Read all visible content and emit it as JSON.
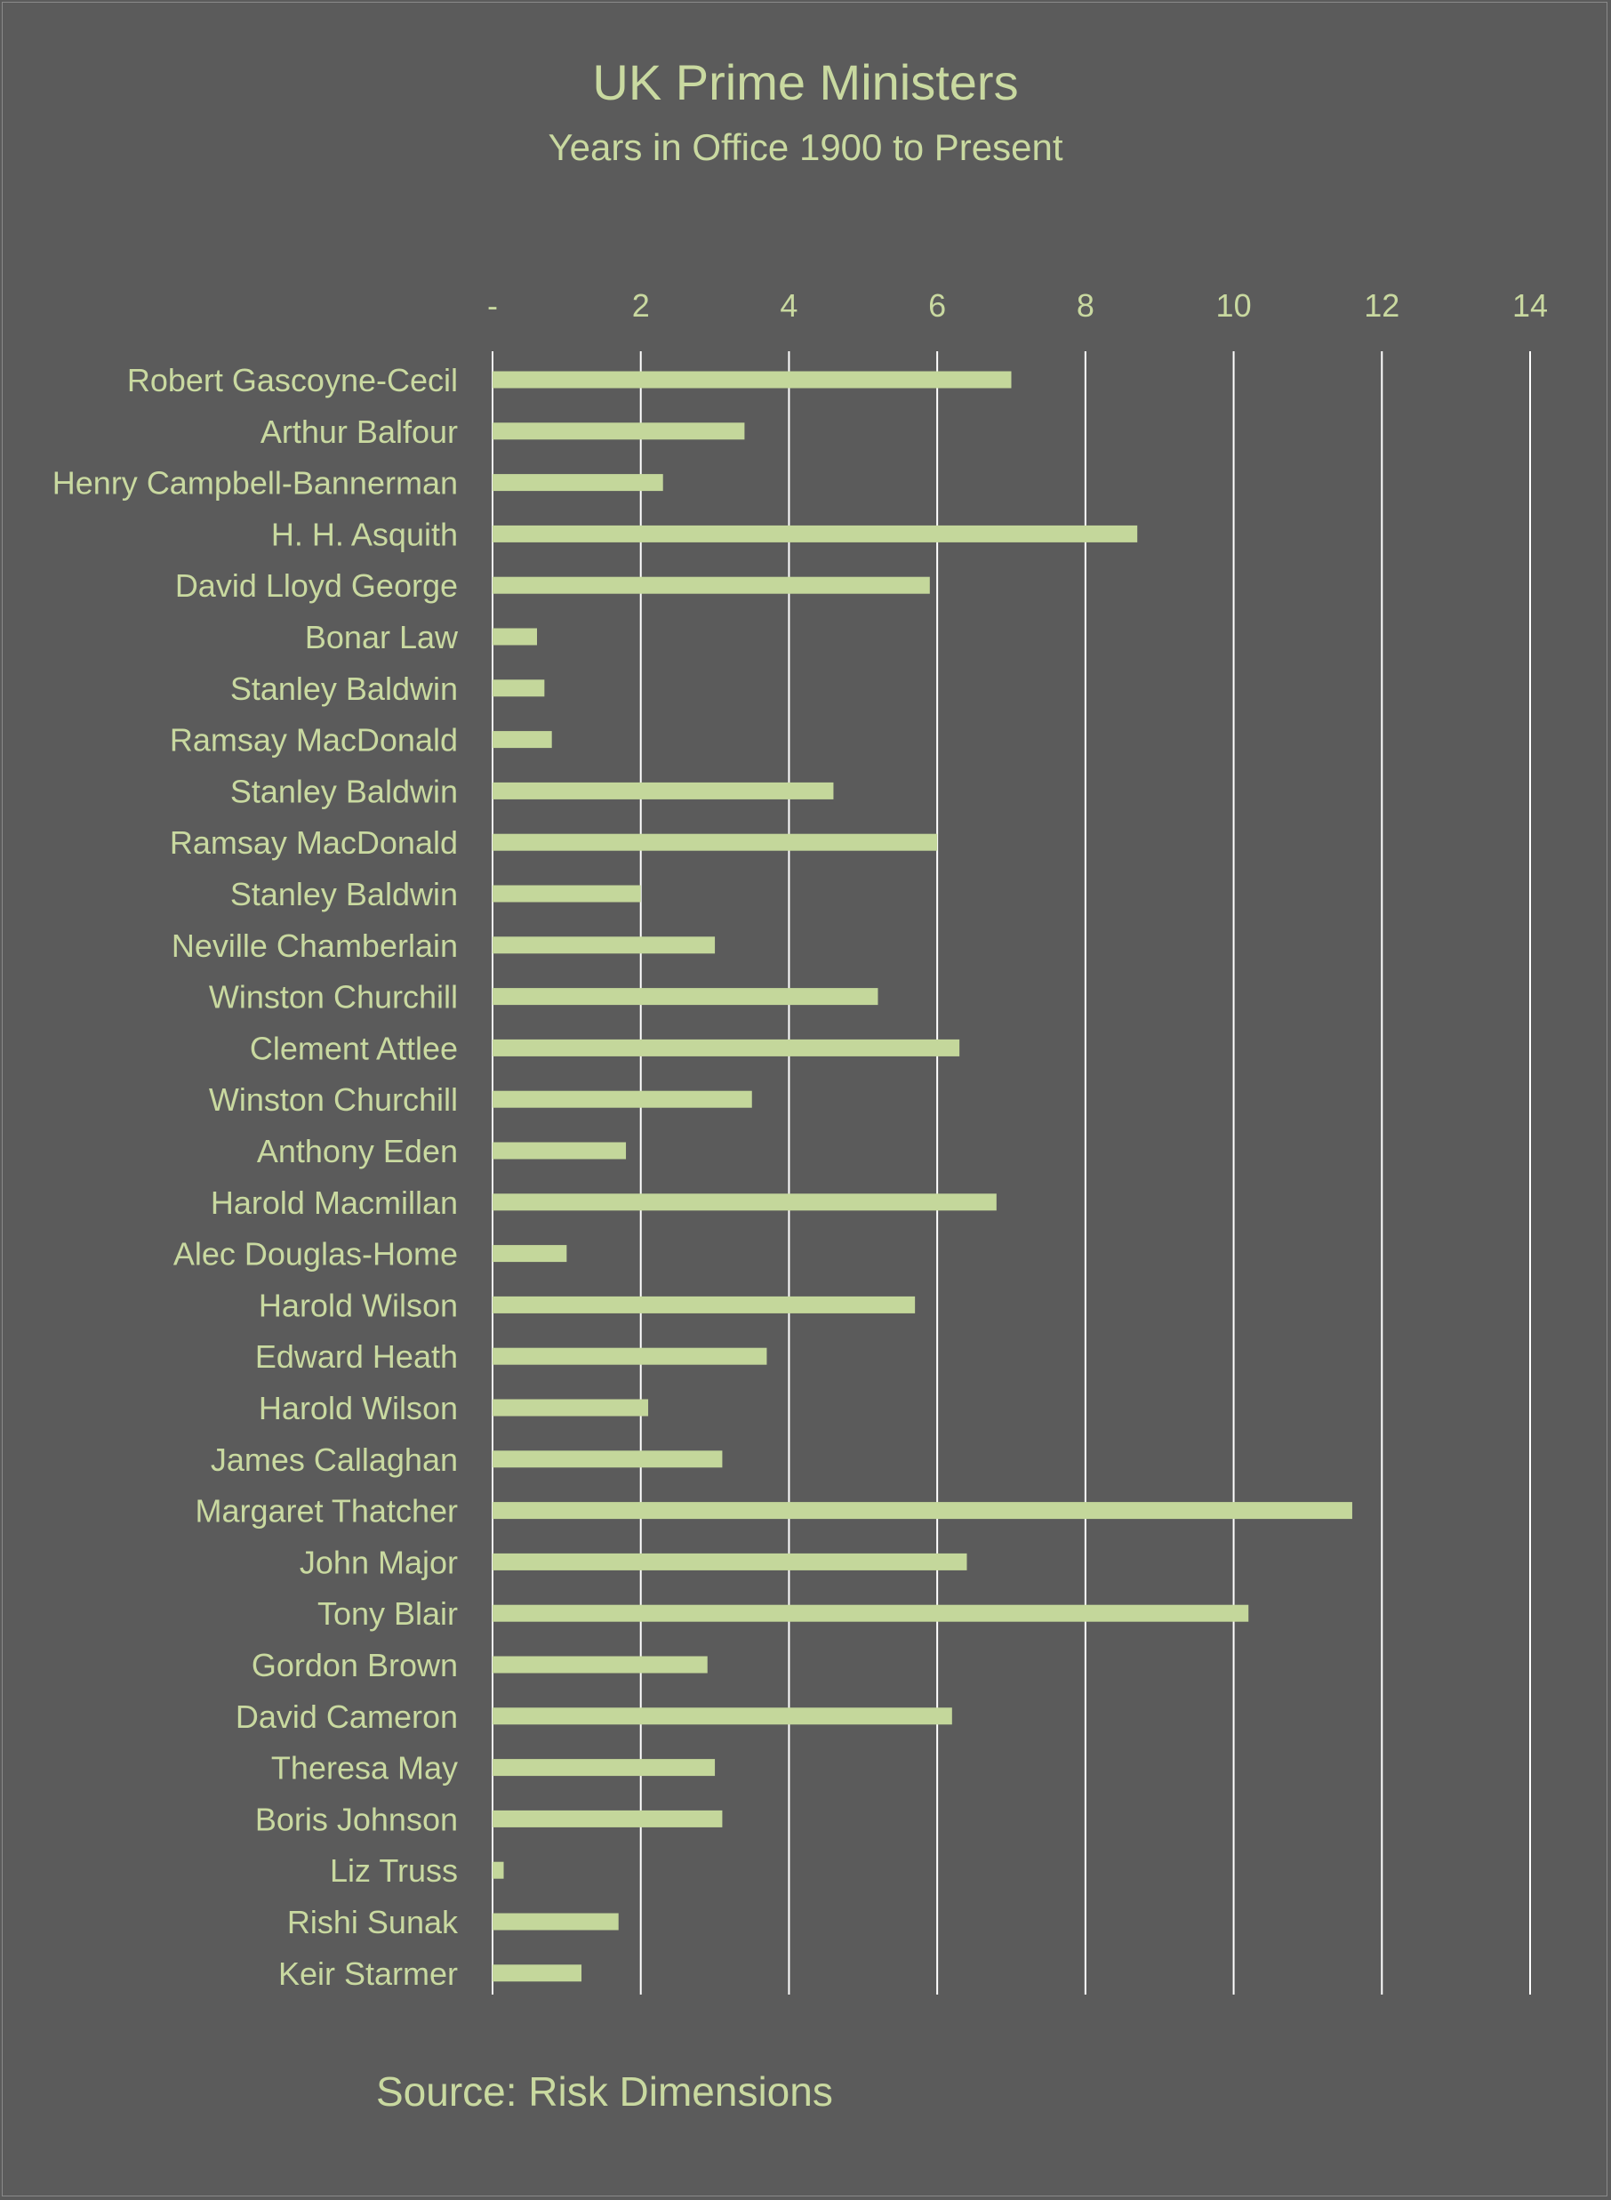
{
  "chart_data": {
    "type": "bar",
    "orientation": "horizontal",
    "title": "UK Prime Ministers",
    "subtitle": "Years in Office 1900 to Present",
    "source": "Source: Risk Dimensions",
    "xlim": [
      0,
      14
    ],
    "x_ticks": [
      0,
      2,
      4,
      6,
      8,
      10,
      12,
      14
    ],
    "x_tick_labels": [
      "-",
      "2",
      "4",
      "6",
      "8",
      "10",
      "12",
      "14"
    ],
    "grid": true,
    "legend": "none",
    "categories": [
      "Robert Gascoyne-Cecil",
      "Arthur Balfour",
      "Henry Campbell-Bannerman",
      "H. H. Asquith",
      "David Lloyd George",
      "Bonar Law",
      "Stanley Baldwin",
      "Ramsay MacDonald",
      "Stanley Baldwin",
      "Ramsay MacDonald",
      "Stanley Baldwin",
      "Neville Chamberlain",
      "Winston Churchill",
      "Clement Attlee",
      "Winston Churchill",
      "Anthony Eden",
      "Harold Macmillan",
      "Alec Douglas-Home",
      "Harold Wilson",
      "Edward Heath",
      "Harold Wilson",
      "James Callaghan",
      "Margaret Thatcher",
      "John Major",
      "Tony Blair",
      "Gordon Brown",
      "David Cameron",
      "Theresa May",
      "Boris Johnson",
      "Liz Truss",
      "Rishi Sunak",
      "Keir Starmer"
    ],
    "values": [
      7.0,
      3.4,
      2.3,
      8.7,
      5.9,
      0.6,
      0.7,
      0.8,
      4.6,
      6.0,
      2.0,
      3.0,
      5.2,
      6.3,
      3.5,
      1.8,
      6.8,
      1.0,
      5.7,
      3.7,
      2.1,
      3.1,
      11.6,
      6.4,
      10.2,
      2.9,
      6.2,
      3.0,
      3.1,
      0.15,
      1.7,
      1.2
    ],
    "colors": {
      "background": "#5b5b5b",
      "bar": "#c4d79b",
      "text": "#c9d9a0",
      "grid": "#ffffff"
    }
  }
}
